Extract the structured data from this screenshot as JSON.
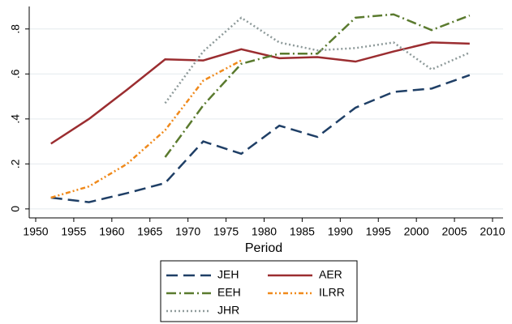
{
  "chart_data": {
    "type": "line",
    "xlabel": "Period",
    "x": [
      1952,
      1957,
      1962,
      1967,
      1972,
      1977,
      1982,
      1987,
      1992,
      1997,
      2002,
      2007
    ],
    "series": [
      {
        "name": "JEH",
        "color": "#1f3f66",
        "dash": "14,7",
        "values": [
          0.05,
          0.03,
          0.07,
          0.115,
          0.3,
          0.245,
          0.37,
          0.32,
          0.45,
          0.52,
          0.535,
          0.595
        ]
      },
      {
        "name": "AER",
        "color": "#9b2d30",
        "dash": "none",
        "values": [
          0.29,
          0.4,
          0.53,
          0.665,
          0.66,
          0.71,
          0.67,
          0.675,
          0.655,
          0.7,
          0.74,
          0.735
        ]
      },
      {
        "name": "EEH",
        "color": "#5a7a2e",
        "dash": "12,4,2,4",
        "values": [
          null,
          null,
          null,
          0.23,
          0.46,
          0.645,
          0.69,
          0.69,
          0.85,
          0.865,
          0.795,
          0.86
        ]
      },
      {
        "name": "ILRR",
        "color": "#f08a1c",
        "dash": "6,3,2,3,2,3",
        "values": [
          0.05,
          0.1,
          0.2,
          0.35,
          0.57,
          0.66,
          null,
          null,
          null,
          null,
          null,
          null
        ]
      },
      {
        "name": "JHR",
        "color": "#8e9a9a",
        "dash": "2,3",
        "values": [
          null,
          null,
          null,
          0.47,
          0.7,
          0.85,
          0.74,
          0.705,
          0.715,
          0.74,
          0.62,
          0.695
        ]
      }
    ],
    "xlim": [
      1950,
      2010
    ],
    "xticks": [
      1950,
      1955,
      1960,
      1965,
      1970,
      1975,
      1980,
      1985,
      1990,
      1995,
      2000,
      2005,
      2010
    ],
    "ylim": [
      -0.04,
      0.9
    ],
    "yticks": [
      0,
      {
        "value": 0.2,
        "label": ".2"
      },
      {
        "value": 0.4,
        "label": ".4"
      },
      {
        "value": 0.6,
        "label": ".6"
      },
      {
        "value": 0.8,
        "label": ".8"
      }
    ],
    "grid": true,
    "legend": "bottom"
  }
}
